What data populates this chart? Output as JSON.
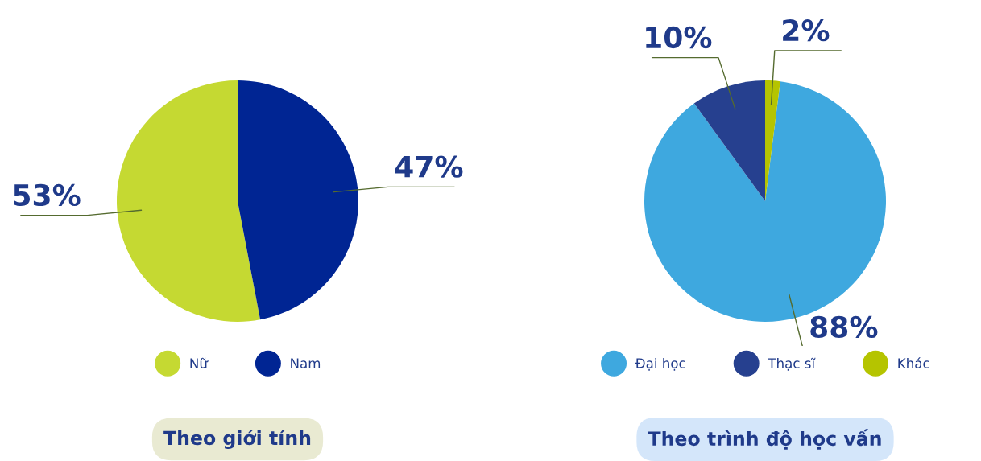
{
  "chart_data": [
    {
      "type": "pie",
      "title": "Theo giới tính",
      "categories": [
        "Nữ",
        "Nam"
      ],
      "values": [
        53,
        47
      ],
      "colors": [
        "#c5d932",
        "#002593"
      ],
      "data_labels": true,
      "value_labels": [
        "53%",
        "47%"
      ],
      "legend": "bottom"
    },
    {
      "type": "pie",
      "title": "Theo trình độ học vấn",
      "categories": [
        "Đại học",
        "Thạc sĩ",
        "Khác"
      ],
      "values": [
        88,
        10,
        2
      ],
      "colors": [
        "#3ea8df",
        "#26408f",
        "#b5c400"
      ],
      "data_labels": true,
      "value_labels": [
        "88%",
        "10%",
        "2%"
      ],
      "legend": "bottom"
    }
  ]
}
